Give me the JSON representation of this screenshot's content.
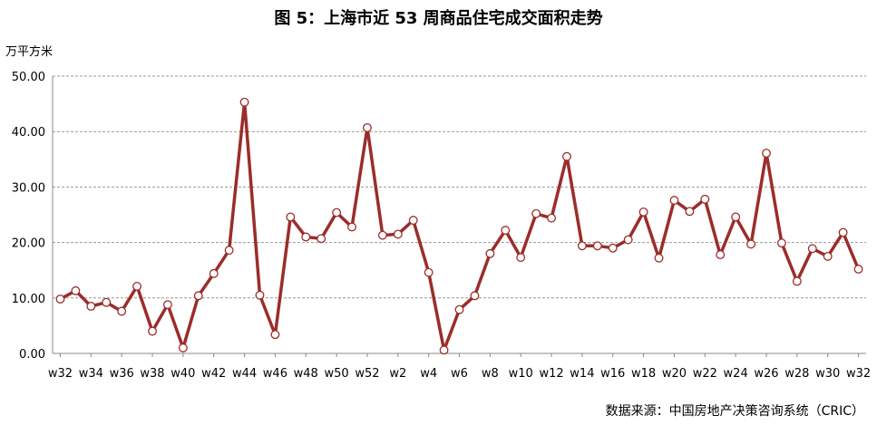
{
  "title": "图 5：上海市近 53 周商品住宅成交面积走势",
  "unit_label": "万平方米",
  "source": "数据来源：中国房地产决策咨询系统（CRIC）",
  "chart_data": {
    "type": "line",
    "title": "图 5：上海市近 53 周商品住宅成交面积走势",
    "ylabel": "万平方米",
    "xlabel": "",
    "ylim": [
      0,
      50
    ],
    "yticks": [
      "0.00",
      "10.00",
      "20.00",
      "30.00",
      "40.00",
      "50.00"
    ],
    "grid": "horizontal dashed",
    "line_color": "#9b2d2a",
    "categories": [
      "w32",
      "w33",
      "w34",
      "w35",
      "w36",
      "w37",
      "w38",
      "w39",
      "w40",
      "w41",
      "w42",
      "w43",
      "w44",
      "w45",
      "w46",
      "w47",
      "w48",
      "w49",
      "w50",
      "w51",
      "w52",
      "w1",
      "w2",
      "w3",
      "w4",
      "w5",
      "w6",
      "w7",
      "w8",
      "w9",
      "w10",
      "w11",
      "w12",
      "w13",
      "w14",
      "w15",
      "w16",
      "w17",
      "w18",
      "w19",
      "w20",
      "w21",
      "w22",
      "w23",
      "w24",
      "w25",
      "w26",
      "w27",
      "w28",
      "w29",
      "w30",
      "w31",
      "w32"
    ],
    "xtick_labels": [
      "w32",
      "w34",
      "w36",
      "w38",
      "w40",
      "w42",
      "w44",
      "w46",
      "w48",
      "w50",
      "w52",
      "w2",
      "w4",
      "w6",
      "w8",
      "w10",
      "w12",
      "w14",
      "w16",
      "w18",
      "w20",
      "w22",
      "w24",
      "w26",
      "w28",
      "w30",
      "w32"
    ],
    "series": [
      {
        "values": [
          9.8,
          11.3,
          8.5,
          9.2,
          7.6,
          12.1,
          4.0,
          8.8,
          1.0,
          10.4,
          14.4,
          18.6,
          45.3,
          10.5,
          3.4,
          24.6,
          21.0,
          20.7,
          25.4,
          22.8,
          40.7,
          21.3,
          21.5,
          24.0,
          14.6,
          0.6,
          7.9,
          10.4,
          18.0,
          22.2,
          17.3,
          25.2,
          24.4,
          35.5,
          19.4,
          19.4,
          19.0,
          20.5,
          25.5,
          17.2,
          27.6,
          25.6,
          27.8,
          17.8,
          24.6,
          19.7,
          36.1,
          19.9,
          13.0,
          18.9,
          17.5,
          21.8,
          15.2
        ]
      }
    ]
  }
}
